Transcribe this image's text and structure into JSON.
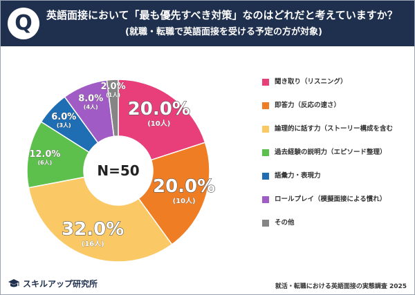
{
  "header": {
    "q_badge": "Q",
    "title": "英語面接において「最も優先すべき対策」なのはどれだと考えていますか？",
    "subtitle": "(就職・転職で英語面接を受ける予定の方が対象)"
  },
  "center_label": "N=50",
  "footer": {
    "source": "就活・転職における英語面接の実態調査 2025",
    "brand": "スキルアップ研究所"
  },
  "chart_data": {
    "type": "pie",
    "title": "英語面接において「最も優先すべき対策」なのはどれだと考えていますか？",
    "categories": [
      "聞き取り（リスニング）",
      "即答力（反応の速さ）",
      "論理的に話す力（ストーリー構成を含む",
      "過去経験の説明力（エピソード整理）",
      "語彙力・表現力",
      "ロールプレイ（模擬面接による慣れ）",
      "その他"
    ],
    "values": [
      20.0,
      20.0,
      32.0,
      12.0,
      6.0,
      8.0,
      2.0
    ],
    "percent_labels": [
      "20.0%",
      "20.0%",
      "32.0%",
      "12.0%",
      "6.0%",
      "8.0%",
      "2.0%"
    ],
    "count_labels": [
      "(10人)",
      "(10人)",
      "(16人)",
      "(6人)",
      "(3人)",
      "(4人)",
      "(1人)"
    ],
    "colors": [
      "#e83e7a",
      "#ee7d23",
      "#fac865",
      "#5dbf4c",
      "#1f6db3",
      "#a05cc4",
      "#858585"
    ],
    "legend_position": "right",
    "donut_center_text": "N=50"
  }
}
